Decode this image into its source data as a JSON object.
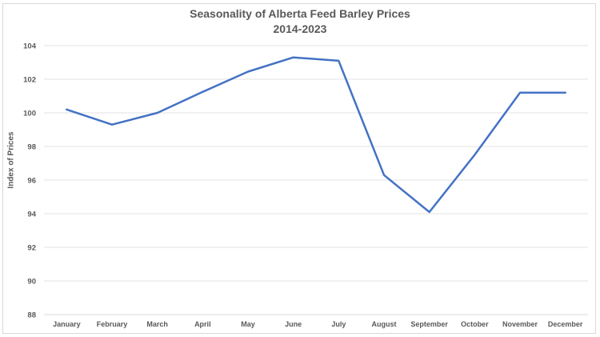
{
  "chart_data": {
    "type": "line",
    "title": "Seasonality of Alberta Feed Barley Prices",
    "subtitle": "2014-2023",
    "xlabel": "",
    "ylabel": "Index of Prices",
    "categories": [
      "January",
      "February",
      "March",
      "April",
      "May",
      "June",
      "July",
      "August",
      "September",
      "October",
      "November",
      "December"
    ],
    "series": [
      {
        "name": "Index of Prices",
        "color": "#4472c4",
        "values": [
          100.2,
          99.3,
          100.0,
          101.25,
          102.45,
          103.3,
          103.1,
          96.3,
          94.1,
          97.5,
          101.2,
          101.2
        ]
      }
    ],
    "ylim": [
      88,
      104
    ],
    "yticks": [
      88,
      90,
      92,
      94,
      96,
      98,
      100,
      102,
      104
    ],
    "grid": true,
    "legend": "none"
  }
}
